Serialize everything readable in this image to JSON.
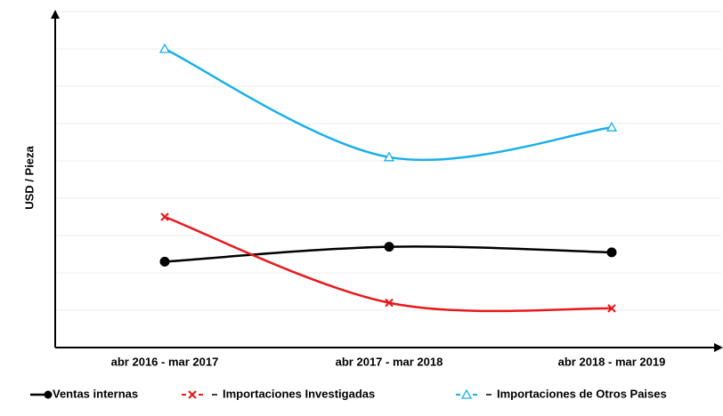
{
  "chart_data": {
    "type": "line",
    "y_label": "USD / Pieza",
    "categories": [
      "abr 2016 - mar 2017",
      "abr 2017 - mar 2018",
      "abr 2018 - mar 2019"
    ],
    "series": [
      {
        "name": "Ventas internas",
        "color": "#000000",
        "marker": "circle",
        "values": [
          2.3,
          2.7,
          2.55
        ]
      },
      {
        "name": "Importaciones  Investigadas",
        "color": "#e8191c",
        "marker": "x",
        "values": [
          3.5,
          1.2,
          1.05
        ]
      },
      {
        "name": "Importaciones de Otros Paises",
        "color": "#1ab0e8",
        "marker": "triangle",
        "values": [
          8.0,
          5.1,
          5.9
        ]
      }
    ],
    "ylim": [
      0,
      9
    ],
    "yticks": [
      1,
      2,
      3,
      4,
      5,
      6,
      7,
      8,
      9
    ],
    "grid": true,
    "smooth": true
  }
}
